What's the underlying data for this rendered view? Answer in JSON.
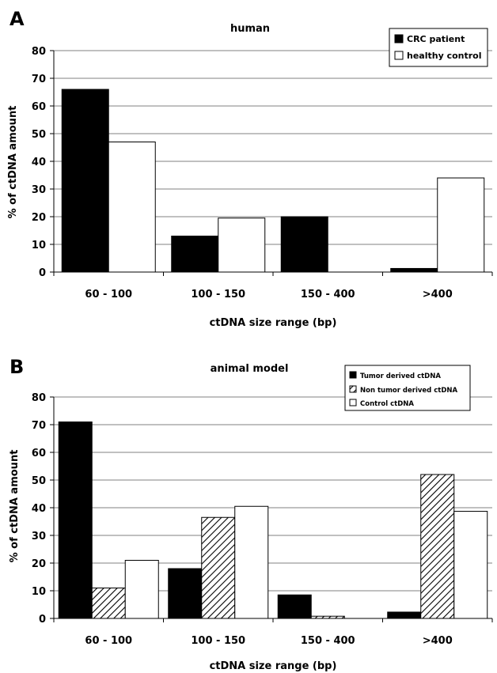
{
  "chart_data": [
    {
      "panel_label": "A",
      "type": "bar",
      "title": "human",
      "xlabel": "ctDNA size range (bp)",
      "ylabel": "% of ctDNA amount",
      "categories": [
        "60 - 100",
        "100 - 150",
        "150 - 400",
        ">400"
      ],
      "ylim": [
        0,
        80
      ],
      "yticks": [
        "0",
        "10",
        "20",
        "30",
        "40",
        "50",
        "60",
        "70",
        "80"
      ],
      "grid": true,
      "legend": "top-right",
      "series": [
        {
          "name": "CRC patient",
          "fill": "solid",
          "values": [
            66,
            13,
            20,
            1.3
          ]
        },
        {
          "name": "healthy control",
          "fill": "white",
          "values": [
            47,
            19.5,
            0,
            34
          ]
        }
      ]
    },
    {
      "panel_label": "B",
      "type": "bar",
      "title": "animal model",
      "xlabel": "ctDNA size range (bp)",
      "ylabel": "% of ctDNA amount",
      "categories": [
        "60 - 100",
        "100 - 150",
        "150 - 400",
        ">400"
      ],
      "ylim": [
        0,
        80
      ],
      "yticks": [
        "0",
        "10",
        "20",
        "30",
        "40",
        "50",
        "60",
        "70",
        "80"
      ],
      "grid": true,
      "legend": "top-right",
      "series": [
        {
          "name": "Tumor derived ctDNA",
          "fill": "solid",
          "values": [
            71,
            18,
            8.5,
            2.3
          ]
        },
        {
          "name": "Non tumor derived ctDNA",
          "fill": "hatch",
          "values": [
            11,
            36.5,
            0.8,
            52
          ]
        },
        {
          "name": "Control ctDNA",
          "fill": "white",
          "values": [
            21,
            40.5,
            0,
            38.7
          ]
        }
      ]
    }
  ]
}
